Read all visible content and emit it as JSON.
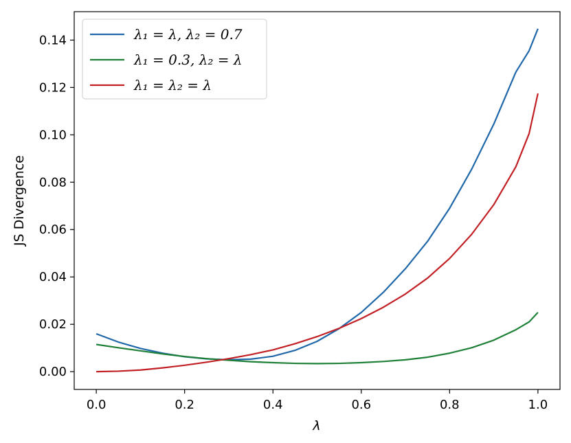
{
  "chart_data": {
    "type": "line",
    "xlabel": "λ",
    "ylabel": "JS Divergence",
    "xlim": [
      -0.05,
      1.05
    ],
    "ylim": [
      -0.0075,
      0.152
    ],
    "xticks": [
      "0.0",
      "0.2",
      "0.4",
      "0.6",
      "0.8",
      "1.0"
    ],
    "yticks": [
      "0.00",
      "0.02",
      "0.04",
      "0.06",
      "0.08",
      "0.10",
      "0.12",
      "0.14"
    ],
    "grid": false,
    "legend_position": "top-left",
    "x": [
      0.0,
      0.05,
      0.1,
      0.15,
      0.2,
      0.25,
      0.3,
      0.35,
      0.4,
      0.45,
      0.5,
      0.55,
      0.6,
      0.65,
      0.7,
      0.75,
      0.8,
      0.85,
      0.9,
      0.95,
      0.98,
      1.0
    ],
    "series": [
      {
        "name": "λ₁ = λ, λ₂ = 0.7",
        "color": "#1f67a8",
        "values": [
          0.016,
          0.0125,
          0.0098,
          0.0078,
          0.0063,
          0.0054,
          0.005,
          0.0053,
          0.0065,
          0.009,
          0.0128,
          0.0182,
          0.025,
          0.0335,
          0.0435,
          0.055,
          0.069,
          0.0855,
          0.1045,
          0.1265,
          0.1355,
          0.1448
        ]
      },
      {
        "name": "λ₁ = 0.3, λ₂ = λ",
        "color": "#1e8036",
        "values": [
          0.0115,
          0.0101,
          0.0088,
          0.0075,
          0.0064,
          0.0055,
          0.0048,
          0.0042,
          0.0038,
          0.0035,
          0.0034,
          0.0035,
          0.0038,
          0.0043,
          0.005,
          0.0061,
          0.0078,
          0.0101,
          0.0133,
          0.0177,
          0.021,
          0.025
        ]
      },
      {
        "name": "λ₁ = λ₂ = λ",
        "color": "#c21f24",
        "values": [
          0.0,
          0.0002,
          0.0007,
          0.0016,
          0.0027,
          0.004,
          0.0055,
          0.0072,
          0.0092,
          0.0118,
          0.0148,
          0.0183,
          0.0224,
          0.0272,
          0.0328,
          0.0395,
          0.0478,
          0.058,
          0.0705,
          0.0865,
          0.1005,
          0.1175
        ]
      }
    ]
  }
}
